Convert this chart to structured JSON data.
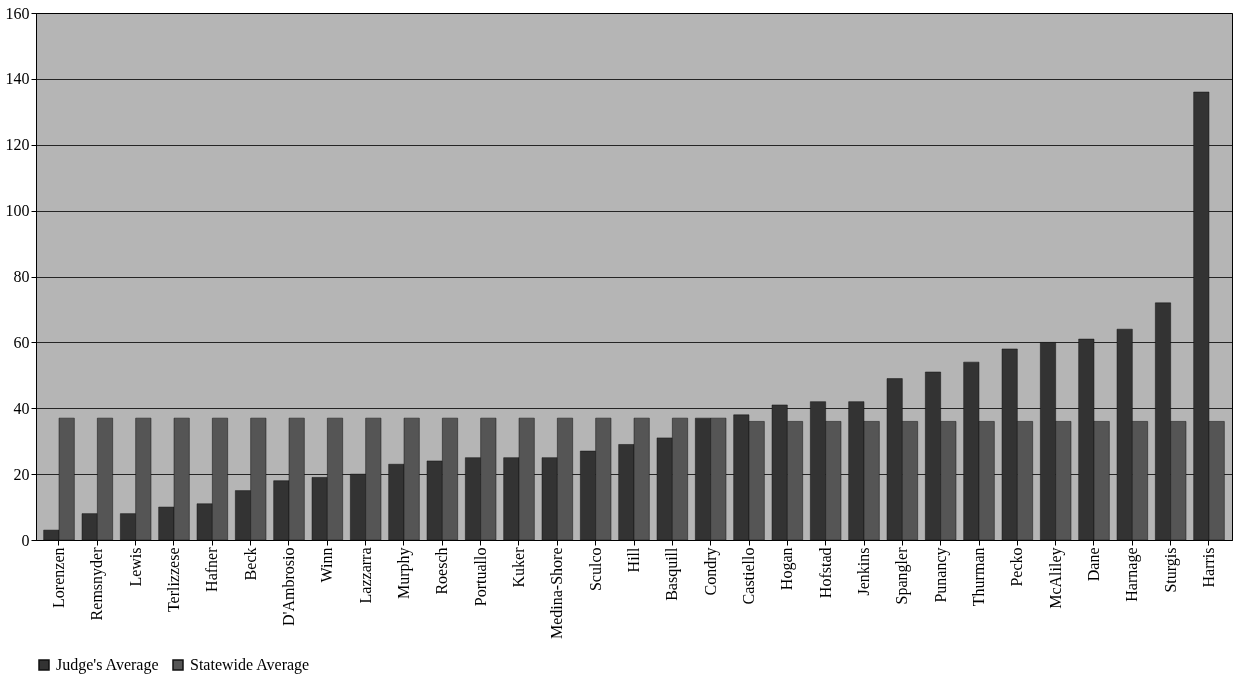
{
  "chart_data": {
    "type": "bar",
    "categories": [
      "Lorenzen",
      "Remsnyder",
      "Lewis",
      "Terlizzese",
      "Hafner",
      "Beck",
      "D'Ambrosio",
      "Winn",
      "Lazzarra",
      "Murphy",
      "Roesch",
      "Portuallo",
      "Kuker",
      "Medina-Shore",
      "Sculco",
      "Hill",
      "Basquill",
      "Condry",
      "Castiello",
      "Hogan",
      "Hofstad",
      "Jenkins",
      "Spangler",
      "Punancy",
      "Thurman",
      "Pecko",
      "McAliley",
      "Dane",
      "Harnage",
      "Sturgis",
      "Harris"
    ],
    "series": [
      {
        "name": "Judge's Average",
        "color": "#333333",
        "values": [
          3,
          8,
          8,
          10,
          11,
          15,
          18,
          19,
          20,
          23,
          24,
          25,
          25,
          25,
          27,
          29,
          31,
          37,
          38,
          41,
          42,
          42,
          49,
          51,
          54,
          58,
          60,
          61,
          64,
          72,
          136
        ]
      },
      {
        "name": "Statewide Average",
        "color": "#555555",
        "values": [
          37,
          37,
          37,
          37,
          37,
          37,
          37,
          37,
          37,
          37,
          37,
          37,
          37,
          37,
          37,
          37,
          37,
          37,
          36,
          36,
          36,
          36,
          36,
          36,
          36,
          36,
          36,
          36,
          36,
          36,
          36
        ]
      }
    ],
    "ylim": [
      0,
      160
    ],
    "yticks": [
      0,
      20,
      40,
      60,
      80,
      100,
      120,
      140,
      160
    ],
    "grid": "y",
    "legend": "bottom"
  }
}
